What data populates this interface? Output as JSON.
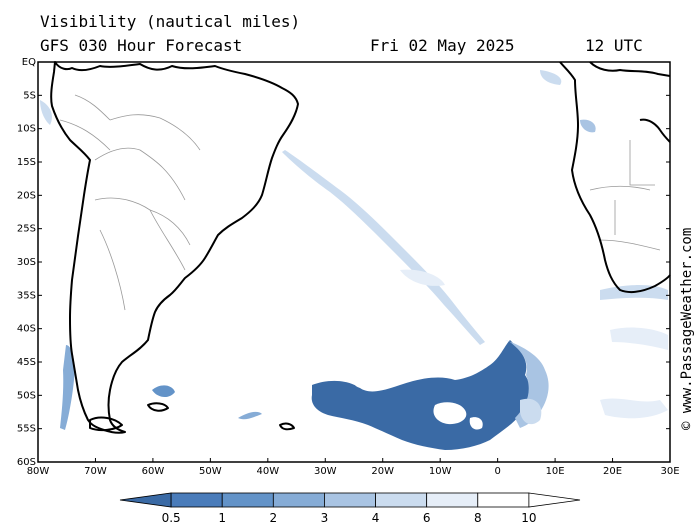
{
  "header": {
    "title": "Visibility (nautical miles)",
    "model": "GFS 030 Hour Forecast",
    "date": "Fri 02 May 2025",
    "time": "12 UTC"
  },
  "map": {
    "lat_range": [
      -60,
      0
    ],
    "lon_range": [
      -80,
      30
    ],
    "lat_labels": [
      "EQ",
      "5S",
      "10S",
      "15S",
      "20S",
      "25S",
      "30S",
      "35S",
      "40S",
      "45S",
      "50S",
      "55S",
      "60S"
    ],
    "lon_labels": [
      "80W",
      "70W",
      "60W",
      "50W",
      "40W",
      "30W",
      "20W",
      "10W",
      "0",
      "10E",
      "20E",
      "30E"
    ],
    "land_color": "#ffffff",
    "coast_color": "#000000",
    "border_color": "#999999"
  },
  "legend": {
    "values": [
      "0.5",
      "1",
      "2",
      "3",
      "4",
      "6",
      "8",
      "10"
    ],
    "colors": [
      "#3a6aa5",
      "#4a7cba",
      "#6393c8",
      "#86acd6",
      "#a9c4e3",
      "#cbdcef",
      "#e6eef8",
      "#ffffff"
    ]
  },
  "credit": "© www.PassageWeather.com"
}
